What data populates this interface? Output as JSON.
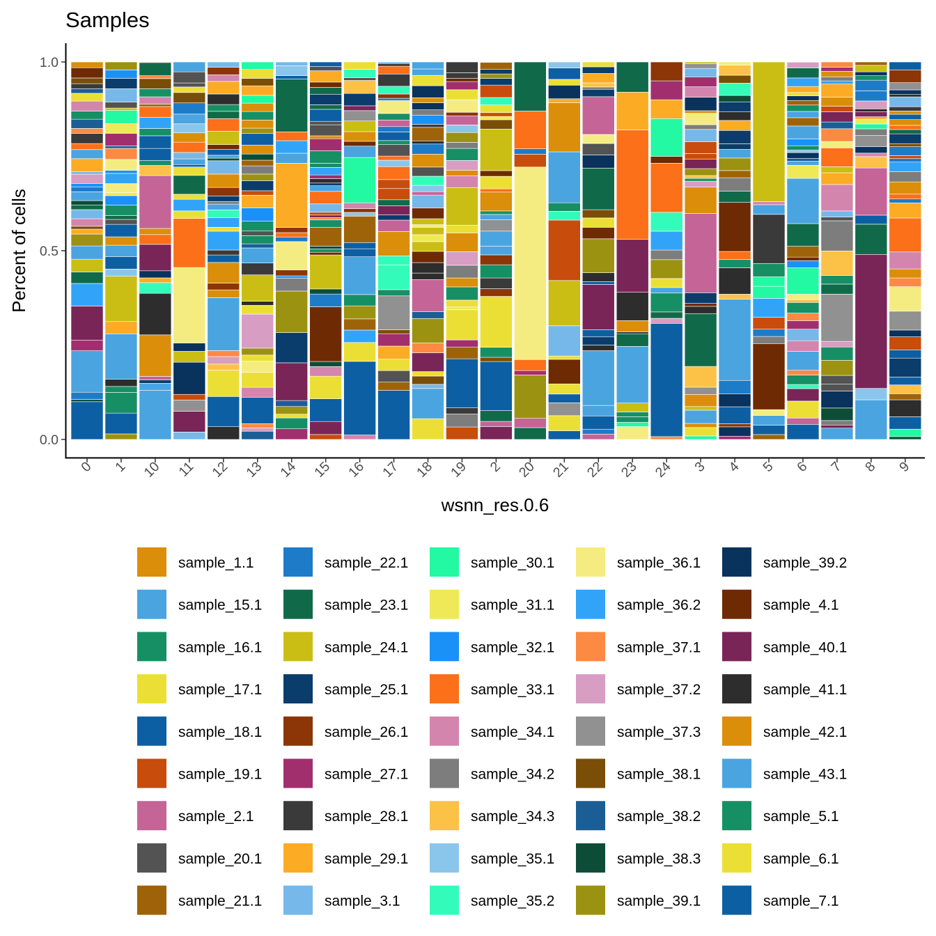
{
  "chart_data": {
    "type": "bar",
    "stacked": true,
    "title": "Samples",
    "xlabel": "wsnn_res.0.6",
    "ylabel": "Percent of cells",
    "ylim": [
      0,
      1
    ],
    "yticks": [
      "0.0",
      "0.5",
      "1.0"
    ],
    "categories": [
      "0",
      "1",
      "10",
      "11",
      "12",
      "13",
      "14",
      "15",
      "16",
      "17",
      "18",
      "19",
      "2",
      "20",
      "21",
      "22",
      "23",
      "24",
      "3",
      "4",
      "5",
      "6",
      "7",
      "8",
      "9"
    ],
    "dominant_segments": [
      [
        [
          "sample_18.1",
          0.1
        ],
        [
          "sample_15.1",
          0.11
        ],
        [
          "sample_40.1",
          0.09
        ],
        [
          "sample_36.2",
          0.06
        ],
        [
          "sample_23.1",
          0.03
        ]
      ],
      [
        [
          "sample_18.1",
          0.055
        ],
        [
          "sample_16.1",
          0.055
        ],
        [
          "sample_15.1",
          0.12
        ],
        [
          "sample_24.1",
          0.12
        ],
        [
          "sample_15.1",
          0.03
        ]
      ],
      [
        [
          "sample_15.1",
          0.13
        ],
        [
          "sample_42.1",
          0.11
        ],
        [
          "sample_41.1",
          0.11
        ],
        [
          "sample_40.1",
          0.07
        ],
        [
          "sample_2.1",
          0.14
        ]
      ],
      [
        [
          "sample_40.1",
          0.055
        ],
        [
          "sample_39.2",
          0.085
        ],
        [
          "sample_36.1",
          0.2
        ],
        [
          "sample_33.1",
          0.13
        ],
        [
          "sample_23.1",
          0.05
        ]
      ],
      [
        [
          "sample_18.1",
          0.08
        ],
        [
          "sample_17.1",
          0.07
        ],
        [
          "sample_15.1",
          0.14
        ],
        [
          "sample_42.1",
          0.055
        ],
        [
          "sample_36.2",
          0.05
        ]
      ],
      [
        [
          "sample_18.1",
          0.07
        ],
        [
          "sample_17.1",
          0.04
        ],
        [
          "sample_37.2",
          0.09
        ],
        [
          "sample_24.1",
          0.07
        ],
        [
          "sample_43.1",
          0.04
        ]
      ],
      [
        [
          "sample_17.1",
          0.01
        ],
        [
          "sample_40.1",
          0.1
        ],
        [
          "sample_25.1",
          0.08
        ],
        [
          "sample_39.1",
          0.11
        ],
        [
          "sample_36.1",
          0.075
        ],
        [
          "sample_29.1",
          0.17
        ],
        [
          "sample_23.1",
          0.14
        ]
      ],
      [
        [
          "sample_18.1",
          0.06
        ],
        [
          "sample_17.1",
          0.06
        ],
        [
          "sample_4.1",
          0.145
        ],
        [
          "sample_24.1",
          0.09
        ],
        [
          "sample_21.1",
          0.05
        ]
      ],
      [
        [
          "sample_18.1",
          0.195
        ],
        [
          "sample_17.1",
          0.05
        ],
        [
          "sample_5.1",
          0.03
        ],
        [
          "sample_15.1",
          0.1
        ],
        [
          "sample_21.1",
          0.07
        ],
        [
          "sample_30.1",
          0.12
        ]
      ],
      [
        [
          "sample_18.1",
          0.13
        ],
        [
          "sample_17.1",
          0.03
        ],
        [
          "sample_37.3",
          0.09
        ],
        [
          "sample_35.2",
          0.065
        ],
        [
          "sample_42.1",
          0.065
        ]
      ],
      [
        [
          "sample_6.1",
          0.055
        ],
        [
          "sample_15.1",
          0.08
        ],
        [
          "sample_40.1",
          0.05
        ],
        [
          "sample_39.1",
          0.065
        ],
        [
          "sample_2.1",
          0.085
        ]
      ],
      [
        [
          "sample_18.1",
          0.13
        ],
        [
          "sample_17.1",
          0.08
        ],
        [
          "sample_16.1",
          0.035
        ],
        [
          "sample_42.1",
          0.05
        ],
        [
          "sample_24.1",
          0.1
        ]
      ],
      [
        [
          "sample_18.1",
          0.13
        ],
        [
          "sample_17.1",
          0.135
        ],
        [
          "sample_16.1",
          0.035
        ],
        [
          "sample_15.1",
          0.04
        ],
        [
          "sample_42.1",
          0.05
        ],
        [
          "sample_24.1",
          0.11
        ]
      ],
      [
        [
          "sample_39.1",
          0.115
        ],
        [
          "sample_36.1",
          0.51
        ],
        [
          "sample_33.1",
          0.1
        ],
        [
          "sample_23.1",
          0.13
        ]
      ],
      [
        [
          "sample_17.1",
          0.04
        ],
        [
          "sample_4.1",
          0.065
        ],
        [
          "sample_3.1",
          0.08
        ],
        [
          "sample_24.1",
          0.12
        ],
        [
          "sample_19.1",
          0.16
        ],
        [
          "sample_15.1",
          0.135
        ],
        [
          "sample_42.1",
          0.13
        ]
      ],
      [
        [
          "sample_18.1",
          0.035
        ],
        [
          "sample_15.1",
          0.145
        ],
        [
          "sample_40.1",
          0.12
        ],
        [
          "sample_39.1",
          0.09
        ],
        [
          "sample_23.1",
          0.11
        ],
        [
          "sample_2.1",
          0.1
        ]
      ],
      [
        [
          "sample_16.1",
          0.015
        ],
        [
          "sample_15.1",
          0.15
        ],
        [
          "sample_42.1",
          0.03
        ],
        [
          "sample_41.1",
          0.075
        ],
        [
          "sample_40.1",
          0.14
        ],
        [
          "sample_33.1",
          0.29
        ],
        [
          "sample_29.1",
          0.1
        ],
        [
          "sample_23.1",
          0.08
        ]
      ],
      [
        [
          "sample_18.1",
          0.3
        ],
        [
          "sample_16.1",
          0.05
        ],
        [
          "sample_39.1",
          0.05
        ],
        [
          "sample_36.2",
          0.05
        ],
        [
          "sample_35.2",
          0.05
        ],
        [
          "sample_33.1",
          0.13
        ],
        [
          "sample_30.1",
          0.1
        ],
        [
          "sample_29.1",
          0.05
        ],
        [
          "sample_27.1",
          0.05
        ],
        [
          "sample_26.1",
          0.05
        ]
      ],
      [
        [
          "sample_15.1",
          0.035
        ],
        [
          "sample_34.3",
          0.055
        ],
        [
          "sample_23.1",
          0.14
        ],
        [
          "sample_2.1",
          0.21
        ],
        [
          "sample_42.1",
          0.07
        ]
      ],
      [
        [
          "sample_18.1",
          0.045
        ],
        [
          "sample_15.1",
          0.215
        ],
        [
          "sample_41.1",
          0.07
        ],
        [
          "sample_4.1",
          0.13
        ],
        [
          "sample_23.1",
          0.03
        ]
      ],
      [
        [
          "sample_18.1",
          0.025
        ],
        [
          "sample_4.1",
          0.175
        ],
        [
          "sample_36.2",
          0.05
        ],
        [
          "sample_28.1",
          0.13
        ],
        [
          "sample_24.1",
          0.37
        ]
      ],
      [
        [
          "sample_18.1",
          0.04
        ],
        [
          "sample_17.1",
          0.045
        ],
        [
          "sample_16.1",
          0.025
        ],
        [
          "sample_15.1",
          0.05
        ],
        [
          "sample_37.1",
          0.02
        ],
        [
          "sample_30.1",
          0.07
        ],
        [
          "sample_23.1",
          0.06
        ],
        [
          "sample_43.1",
          0.12
        ]
      ],
      [
        [
          "sample_43.1",
          0.03
        ],
        [
          "sample_39.2",
          0.045
        ],
        [
          "sample_39.1",
          0.04
        ],
        [
          "sample_37.3",
          0.125
        ],
        [
          "sample_34.3",
          0.065
        ],
        [
          "sample_34.2",
          0.08
        ],
        [
          "sample_34.1",
          0.07
        ],
        [
          "sample_33.1",
          0.05
        ]
      ],
      [
        [
          "sample_15.1",
          0.105
        ],
        [
          "sample_40.1",
          0.355
        ],
        [
          "sample_23.1",
          0.08
        ],
        [
          "sample_2.1",
          0.125
        ]
      ],
      [
        [
          "sample_41.1",
          0.045
        ],
        [
          "sample_25.1",
          0.05
        ],
        [
          "sample_37.3",
          0.05
        ],
        [
          "sample_36.1",
          0.065
        ],
        [
          "sample_34.1",
          0.045
        ],
        [
          "sample_33.1",
          0.09
        ],
        [
          "sample_29.1",
          0.04
        ]
      ]
    ],
    "legend_title": "",
    "legend": [
      {
        "label": "sample_1.1",
        "color": "#DB8E0A"
      },
      {
        "label": "sample_15.1",
        "color": "#4AA4E0"
      },
      {
        "label": "sample_16.1",
        "color": "#178F65"
      },
      {
        "label": "sample_17.1",
        "color": "#EBDF36"
      },
      {
        "label": "sample_18.1",
        "color": "#0D5FA3"
      },
      {
        "label": "sample_19.1",
        "color": "#C84C0B"
      },
      {
        "label": "sample_2.1",
        "color": "#C46497"
      },
      {
        "label": "sample_20.1",
        "color": "#535353"
      },
      {
        "label": "sample_21.1",
        "color": "#9E6309"
      },
      {
        "label": "sample_22.1",
        "color": "#1E7BC8"
      },
      {
        "label": "sample_23.1",
        "color": "#106A4A"
      },
      {
        "label": "sample_24.1",
        "color": "#CABE14"
      },
      {
        "label": "sample_25.1",
        "color": "#0A3C6C"
      },
      {
        "label": "sample_26.1",
        "color": "#8C3506"
      },
      {
        "label": "sample_27.1",
        "color": "#A12F6E"
      },
      {
        "label": "sample_28.1",
        "color": "#3A3A3A"
      },
      {
        "label": "sample_29.1",
        "color": "#FBAC24"
      },
      {
        "label": "sample_3.1",
        "color": "#76B8EA"
      },
      {
        "label": "sample_30.1",
        "color": "#22F9A2"
      },
      {
        "label": "sample_31.1",
        "color": "#EFE857"
      },
      {
        "label": "sample_32.1",
        "color": "#1A91F7"
      },
      {
        "label": "sample_33.1",
        "color": "#FB7018"
      },
      {
        "label": "sample_34.1",
        "color": "#D385AE"
      },
      {
        "label": "sample_34.2",
        "color": "#7D7D7D"
      },
      {
        "label": "sample_34.3",
        "color": "#FCC248"
      },
      {
        "label": "sample_35.1",
        "color": "#8AC6EC"
      },
      {
        "label": "sample_35.2",
        "color": "#33FCBA"
      },
      {
        "label": "sample_36.1",
        "color": "#F4EC80"
      },
      {
        "label": "sample_36.2",
        "color": "#32A4F8"
      },
      {
        "label": "sample_37.1",
        "color": "#FC8A43"
      },
      {
        "label": "sample_37.2",
        "color": "#D79DC2"
      },
      {
        "label": "sample_37.3",
        "color": "#919191"
      },
      {
        "label": "sample_38.1",
        "color": "#7A4E06"
      },
      {
        "label": "sample_38.2",
        "color": "#1B5E96"
      },
      {
        "label": "sample_38.3",
        "color": "#0D4D37"
      },
      {
        "label": "sample_39.1",
        "color": "#9C9212"
      },
      {
        "label": "sample_39.2",
        "color": "#09325C"
      },
      {
        "label": "sample_4.1",
        "color": "#6E2A03"
      },
      {
        "label": "sample_40.1",
        "color": "#792557"
      },
      {
        "label": "sample_41.1",
        "color": "#2D2D2D"
      },
      {
        "label": "sample_42.1",
        "color": "#DB8E0A"
      },
      {
        "label": "sample_43.1",
        "color": "#4AA4E0"
      },
      {
        "label": "sample_5.1",
        "color": "#178F65"
      },
      {
        "label": "sample_6.1",
        "color": "#EBDF36"
      },
      {
        "label": "sample_7.1",
        "color": "#0D5FA3"
      }
    ]
  }
}
